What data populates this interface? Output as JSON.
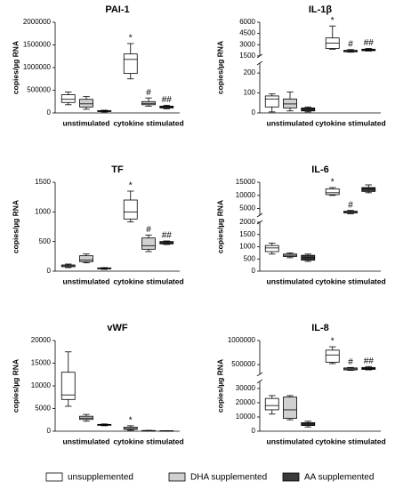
{
  "legend": [
    {
      "name": "unsupplemented",
      "color": "#ffffff"
    },
    {
      "name": "DHA supplemented",
      "color": "#d0d0d0"
    },
    {
      "name": "AA supplemented",
      "color": "#3a3a3a"
    }
  ],
  "chart_data": [
    {
      "type": "box",
      "title": "PAI-1",
      "y_label": "copies/µg RNA",
      "categories": [
        "unstimulated",
        "cytokine stimulated"
      ],
      "segments": [
        {
          "ylim": [
            0,
            2000000
          ],
          "yticks": [
            0,
            500000,
            1000000,
            1500000,
            2000000
          ]
        }
      ],
      "series": [
        {
          "values": [
            {
              "min": 180000,
              "q1": 230000,
              "median": 300000,
              "q3": 400000,
              "max": 460000
            },
            {
              "min": 750000,
              "q1": 870000,
              "median": 1180000,
              "q3": 1300000,
              "max": 1530000,
              "mark": "*"
            }
          ]
        },
        {
          "values": [
            {
              "min": 80000,
              "q1": 130000,
              "median": 200000,
              "q3": 300000,
              "max": 360000
            },
            {
              "min": 150000,
              "q1": 180000,
              "median": 210000,
              "q3": 250000,
              "max": 330000,
              "mark": "#"
            }
          ]
        },
        {
          "values": [
            {
              "min": 20000,
              "q1": 30000,
              "median": 40000,
              "q3": 50000,
              "max": 60000
            },
            {
              "min": 90000,
              "q1": 110000,
              "median": 130000,
              "q3": 150000,
              "max": 170000,
              "mark": "##"
            }
          ]
        }
      ]
    },
    {
      "type": "box",
      "title": "IL-1β",
      "y_label": "copies/µg RNA",
      "categories": [
        "unstimulated",
        "cytokine stimulated"
      ],
      "segments": [
        {
          "ylim": [
            0,
            250
          ],
          "yticks": [
            0,
            100,
            200
          ]
        },
        {
          "ylim": [
            1500,
            6000
          ],
          "yticks": [
            1500,
            3000,
            4500,
            6000
          ]
        }
      ],
      "series": [
        {
          "values": [
            {
              "min": 5,
              "q1": 30,
              "median": 70,
              "q3": 85,
              "max": 95
            },
            {
              "min": 2400,
              "q1": 2500,
              "median": 3200,
              "q3": 3900,
              "max": 5500,
              "mark": "*"
            }
          ]
        },
        {
          "values": [
            {
              "min": 10,
              "q1": 25,
              "median": 45,
              "q3": 70,
              "max": 105
            },
            {
              "min": 2000,
              "q1": 2050,
              "median": 2150,
              "q3": 2250,
              "max": 2350,
              "mark": "#"
            }
          ]
        },
        {
          "values": [
            {
              "min": 5,
              "q1": 10,
              "median": 18,
              "q3": 25,
              "max": 30
            },
            {
              "min": 2150,
              "q1": 2200,
              "median": 2300,
              "q3": 2400,
              "max": 2500,
              "mark": "##"
            }
          ]
        }
      ]
    },
    {
      "type": "box",
      "title": "TF",
      "y_label": "copies/µg RNA",
      "categories": [
        "unstimulated",
        "cytokine stimulated"
      ],
      "segments": [
        {
          "ylim": [
            0,
            1500
          ],
          "yticks": [
            0,
            500,
            1000,
            1500
          ]
        }
      ],
      "series": [
        {
          "values": [
            {
              "min": 60,
              "q1": 75,
              "median": 90,
              "q3": 105,
              "max": 120
            },
            {
              "min": 830,
              "q1": 880,
              "median": 1000,
              "q3": 1200,
              "max": 1350,
              "mark": "*"
            }
          ]
        },
        {
          "values": [
            {
              "min": 140,
              "q1": 160,
              "median": 190,
              "q3": 260,
              "max": 290
            },
            {
              "min": 330,
              "q1": 370,
              "median": 430,
              "q3": 560,
              "max": 610,
              "mark": "#"
            }
          ]
        },
        {
          "values": [
            {
              "min": 30,
              "q1": 40,
              "median": 45,
              "q3": 55,
              "max": 60
            },
            {
              "min": 450,
              "q1": 460,
              "median": 480,
              "q3": 500,
              "max": 510,
              "mark": "##"
            }
          ]
        }
      ]
    },
    {
      "type": "box",
      "title": "IL-6",
      "y_label": "copies/µg RNA",
      "categories": [
        "unstimulated",
        "cytokine stimulated"
      ],
      "segments": [
        {
          "ylim": [
            0,
            2000
          ],
          "yticks": [
            0,
            500,
            1000,
            1500,
            2000
          ]
        },
        {
          "ylim": [
            2500,
            15000
          ],
          "yticks": [
            5000,
            10000,
            15000
          ]
        }
      ],
      "series": [
        {
          "values": [
            {
              "min": 700,
              "q1": 800,
              "median": 950,
              "q3": 1050,
              "max": 1150
            },
            {
              "min": 10000,
              "q1": 10300,
              "median": 11000,
              "q3": 12500,
              "max": 13000,
              "mark": "*"
            }
          ]
        },
        {
          "values": [
            {
              "min": 550,
              "q1": 600,
              "median": 650,
              "q3": 700,
              "max": 750
            },
            {
              "min": 3000,
              "q1": 3300,
              "median": 3700,
              "q3": 4000,
              "max": 4300,
              "mark": "#"
            }
          ]
        },
        {
          "values": [
            {
              "min": 400,
              "q1": 450,
              "median": 550,
              "q3": 650,
              "max": 700
            },
            {
              "min": 11000,
              "q1": 11500,
              "median": 12500,
              "q3": 13000,
              "max": 14000
            }
          ]
        }
      ]
    },
    {
      "type": "box",
      "title": "vWF",
      "y_label": "copies/µg RNA",
      "categories": [
        "unstimulated",
        "cytokine stimulated"
      ],
      "segments": [
        {
          "ylim": [
            0,
            20000
          ],
          "yticks": [
            0,
            5000,
            10000,
            15000,
            20000
          ]
        }
      ],
      "series": [
        {
          "values": [
            {
              "min": 5500,
              "q1": 7000,
              "median": 8000,
              "q3": 13000,
              "max": 17500
            },
            {
              "min": 200,
              "q1": 400,
              "median": 600,
              "q3": 900,
              "max": 1200,
              "mark": "*"
            }
          ]
        },
        {
          "values": [
            {
              "min": 2200,
              "q1": 2600,
              "median": 2900,
              "q3": 3300,
              "max": 3700
            },
            {
              "min": 80,
              "q1": 100,
              "median": 120,
              "q3": 150,
              "max": 180
            }
          ]
        },
        {
          "values": [
            {
              "min": 1200,
              "q1": 1300,
              "median": 1400,
              "q3": 1500,
              "max": 1600
            },
            {
              "min": 50,
              "q1": 70,
              "median": 80,
              "q3": 100,
              "max": 120
            }
          ]
        }
      ]
    },
    {
      "type": "box",
      "title": "IL-8",
      "y_label": "copies/µg RNA",
      "categories": [
        "unstimulated",
        "cytokine stimulated"
      ],
      "segments": [
        {
          "ylim": [
            0,
            35000
          ],
          "yticks": [
            0,
            10000,
            20000,
            30000
          ]
        },
        {
          "ylim": [
            300000,
            1000000
          ],
          "yticks": [
            500000,
            1000000
          ]
        }
      ],
      "series": [
        {
          "values": [
            {
              "min": 12000,
              "q1": 15000,
              "median": 18000,
              "q3": 23000,
              "max": 25000
            },
            {
              "min": 520000,
              "q1": 550000,
              "median": 700000,
              "q3": 800000,
              "max": 870000,
              "mark": "*"
            }
          ]
        },
        {
          "values": [
            {
              "min": 8000,
              "q1": 9000,
              "median": 15000,
              "q3": 24000,
              "max": 25000
            },
            {
              "min": 380000,
              "q1": 390000,
              "median": 410000,
              "q3": 430000,
              "max": 440000,
              "mark": "#"
            }
          ]
        },
        {
          "values": [
            {
              "min": 3000,
              "q1": 4000,
              "median": 5000,
              "q3": 6000,
              "max": 7000
            },
            {
              "min": 390000,
              "q1": 400000,
              "median": 420000,
              "q3": 440000,
              "max": 460000,
              "mark": "##"
            }
          ]
        }
      ]
    }
  ]
}
